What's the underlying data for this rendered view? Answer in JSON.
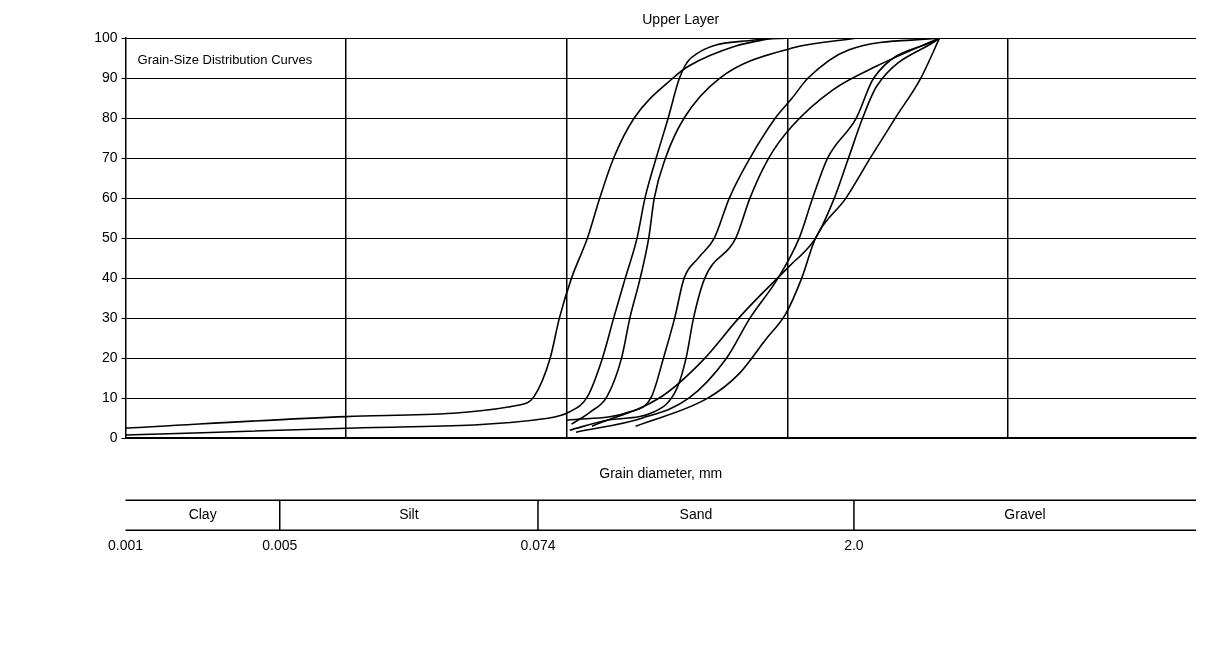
{
  "chart_data": {
    "type": "line",
    "title": "Upper Layer",
    "xlabel": "Grain diameter, mm",
    "annotations": [
      "Grain-Size Distribution Curves",
      "Clay",
      "Silt",
      "Sand",
      "Gravel"
    ],
    "log": "x",
    "grid": true,
    "legend": false,
    "marker": "none",
    "line_style": "solid",
    "xlim": [
      0.001,
      71
    ],
    "ylim": [
      0,
      100
    ],
    "xticks": [
      0.001,
      0.005,
      {
        "value": 0.01,
        "label": null
      },
      0.074,
      {
        "value": 0.1,
        "label": null
      },
      {
        "value": 1,
        "label": null
      },
      {
        "value": 2,
        "label": "2.0"
      },
      {
        "value": 10,
        "label": null
      }
    ],
    "yticks": [
      0,
      10,
      20,
      30,
      40,
      50,
      60,
      70,
      80,
      90,
      100
    ],
    "series": [
      {
        "color": "#000000",
        "x": [
          0.001,
          0.01,
          0.061,
          0.071,
          0.084,
          0.0925,
          0.105,
          0.124,
          0.141,
          0.163,
          0.202,
          0.303,
          0.357,
          0.583,
          0.863
        ],
        "values": [
          2.5,
          5.4,
          8.3,
          10.4,
          20,
          30,
          40,
          50,
          60,
          70,
          80,
          90,
          93,
          98,
          100
        ]
      },
      {
        "color": "#000000",
        "x": [
          0.001,
          0.01,
          0.0822,
          0.103,
          0.124,
          0.145,
          0.163,
          0.184,
          0.208,
          0.226,
          0.254,
          0.288,
          0.324,
          0.365,
          0.71,
          1.05
        ],
        "values": [
          0.8,
          2.5,
          5,
          6.6,
          10.4,
          20,
          30,
          40,
          50,
          60,
          70,
          80,
          90,
          95,
          99.5,
          100
        ]
      },
      {
        "color": "#000000",
        "x": [
          0.105,
          0.128,
          0.152,
          0.177,
          0.193,
          0.215,
          0.235,
          0.249,
          0.28,
          0.34,
          0.494,
          1.05,
          2.08
        ],
        "values": [
          3.5,
          6.6,
          10.4,
          20,
          30,
          40,
          50,
          60,
          70,
          80,
          90,
          97.5,
          100
        ]
      },
      {
        "color": "#000000",
        "x": [
          0.1,
          0.193,
          0.242,
          0.274,
          0.308,
          0.34,
          0.394,
          0.466,
          0.545,
          0.676,
          0.881,
          1.05,
          1.24,
          1.89,
          4.94
        ],
        "values": [
          4.5,
          6.6,
          10.4,
          20,
          30,
          40,
          45,
          50,
          60,
          70,
          80,
          85,
          90,
          97,
          100
        ]
      },
      {
        "color": "#000000",
        "x": [
          0.103,
          0.152,
          0.249,
          0.315,
          0.347,
          0.375,
          0.422,
          0.583,
          0.676,
          0.822,
          1.05,
          1.6,
          2.54,
          4.89
        ],
        "values": [
          2,
          4.5,
          6.6,
          12.4,
          20,
          30,
          40,
          50,
          60,
          70,
          78,
          87,
          93,
          100
        ]
      },
      {
        "color": "#000000",
        "x": [
          0.11,
          0.219,
          0.357,
          0.529,
          0.676,
          0.906,
          1.13,
          1.3,
          1.52,
          2.05,
          2.46,
          4.89
        ],
        "values": [
          1.5,
          5,
          10,
          20,
          30,
          40,
          50,
          60,
          70,
          80,
          90,
          100
        ]
      },
      {
        "color": "#000000",
        "x": [
          0.13,
          0.267,
          0.406,
          0.601,
          0.731,
          1.02,
          1.34,
          1.63,
          1.89,
          2.19,
          2.54,
          4.89
        ],
        "values": [
          3,
          10.3,
          19,
          30,
          35,
          43,
          50,
          60,
          70,
          80,
          88,
          100
        ]
      },
      {
        "color": "#000000",
        "x": [
          0.205,
          0.435,
          0.601,
          0.805,
          0.98,
          1.16,
          1.34,
          1.84,
          2.37,
          3.08,
          4.02,
          4.89
        ],
        "values": [
          3,
          10,
          16,
          25,
          31,
          40,
          50,
          60,
          70,
          80,
          90,
          100
        ]
      }
    ]
  }
}
